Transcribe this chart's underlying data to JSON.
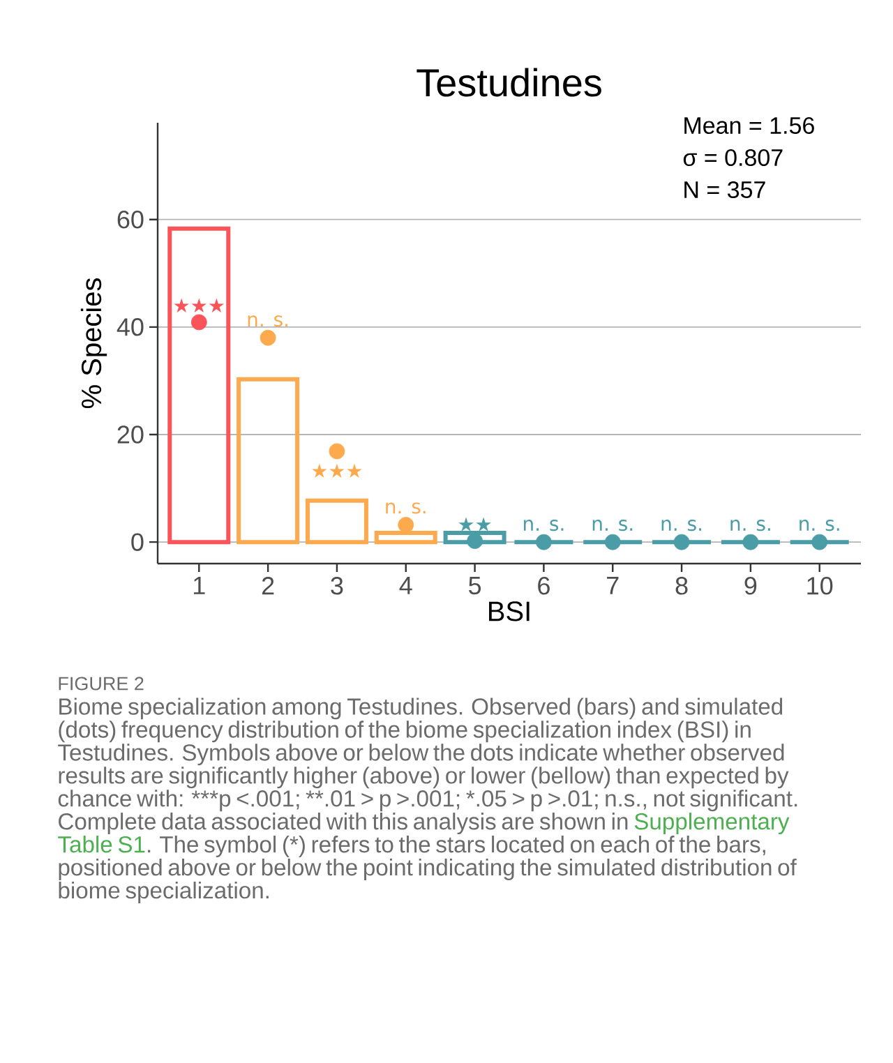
{
  "chart_data": {
    "type": "bar",
    "title": "Testudines",
    "xlabel": "BSI",
    "ylabel": "% Species",
    "categories": [
      "1",
      "2",
      "3",
      "4",
      "5",
      "6",
      "7",
      "8",
      "9",
      "10"
    ],
    "series": [
      {
        "colors": [
          "#f8545a",
          "#fdaa4e",
          "#fdaa4e",
          "#fdaa4e",
          "#4a9ca6",
          "#4a9ca6",
          "#4a9ca6",
          "#4a9ca6",
          "#4a9ca6",
          "#4a9ca6"
        ],
        "values": [
          58.3,
          30.3,
          7.7,
          1.7,
          1.7,
          0,
          0,
          0,
          0,
          0
        ]
      },
      {
        "type": "scatter",
        "marker": "circle",
        "x": [
          "1",
          "2",
          "3",
          "4",
          "5",
          "6",
          "7",
          "8",
          "9",
          "10"
        ],
        "colors": [
          "#f8545a",
          "#fdaa4e",
          "#fdaa4e",
          "#fdaa4e",
          "#4a9ca6",
          "#4a9ca6",
          "#4a9ca6",
          "#4a9ca6",
          "#4a9ca6",
          "#4a9ca6"
        ],
        "values": [
          40.9,
          38.0,
          16.9,
          3.2,
          0.2,
          0,
          0,
          0,
          0,
          0
        ]
      }
    ],
    "ylim": [
      -4,
      78
    ],
    "yticks": [
      0,
      20,
      40,
      60
    ],
    "grid": "y",
    "annotations": [
      "Mean = 1.56",
      "σ = 0.807",
      "N = 357",
      "FIGURE 2",
      "Biome specialization among Testudines. Observed (bars) and simulated (dots) frequency distribution of the biome specialization index (BSI) in Testudines. Symbols above or below the dots indicate whether observed results are significantly higher (above) or lower (bellow) than expected by chance with: ***p <.001; **.01 > p >.001; *.05 > p >.01; n.s., not significant. Complete data associated with this analysis are shown in",
      "Supplementary Table S1",
      ". The symbol (*) refers to the stars located on each of the bars, positioned above or below the point indicating the simulated distribution of biome specialization.",
      {
        "text": "★★★",
        "x": "1",
        "y": 40.9
      },
      {
        "text": "n. s.",
        "x": "2",
        "y": 38.0
      },
      {
        "text": "★★★",
        "x": "3",
        "y": 16.9
      },
      {
        "text": "n. s.",
        "x": "4",
        "y": 3.2
      },
      {
        "text": "★★",
        "x": "5",
        "y": 0.2
      },
      {
        "text": "n. s.",
        "x": "6",
        "y": 0
      },
      {
        "text": "n. s.",
        "x": "7",
        "y": 0
      },
      {
        "text": "n. s.",
        "x": "8",
        "y": 0
      },
      {
        "text": "n. s.",
        "x": "9",
        "y": 0
      },
      {
        "text": "n. s.",
        "x": "10",
        "y": 0
      }
    ]
  }
}
